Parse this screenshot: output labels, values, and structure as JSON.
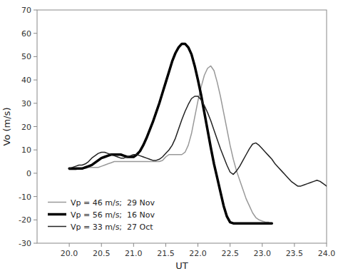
{
  "chart_data": {
    "type": "line",
    "xlabel": "UT",
    "ylabel": "Vo (m/s)",
    "xlim": [
      19.5,
      24.0
    ],
    "ylim": [
      -30,
      70
    ],
    "xticks": [
      {
        "value": 20.0,
        "label": "20.0"
      },
      20.5,
      {
        "value": 21.0,
        "label": "21.0"
      },
      21.5,
      {
        "value": 22.0,
        "label": "22.0"
      },
      22.5,
      {
        "value": 23.0,
        "label": "23.0"
      },
      23.5,
      {
        "value": 24.0,
        "label": "24.0"
      }
    ],
    "yticks": [
      -30,
      -20,
      -10,
      0,
      10,
      20,
      30,
      40,
      50,
      60,
      70
    ],
    "legend": "lower left",
    "series": [
      {
        "name": "Vp = 46 m/s;  29 Nov",
        "color": "#999999",
        "x": [
          20.0,
          20.05,
          20.1,
          20.15,
          20.2,
          20.25,
          20.3,
          20.35,
          20.4,
          20.45,
          20.5,
          20.55,
          20.6,
          20.65,
          20.7,
          20.75,
          20.8,
          20.85,
          20.9,
          20.95,
          21.0,
          21.1,
          21.2,
          21.3,
          21.4,
          21.45,
          21.5,
          21.55,
          21.6,
          21.65,
          21.7,
          21.75,
          21.8,
          21.85,
          21.9,
          21.95,
          22.0,
          22.05,
          22.1,
          22.15,
          22.2,
          22.25,
          22.3,
          22.35,
          22.4,
          22.45,
          22.5,
          22.55,
          22.6,
          22.65,
          22.7,
          22.75,
          22.8,
          22.85,
          22.9,
          22.95,
          23.0,
          23.05,
          23.1
        ],
        "values": [
          1.5,
          1.5,
          1.5,
          2.0,
          2.0,
          2.0,
          2.5,
          2.5,
          2.5,
          2.5,
          3.0,
          3.5,
          4.0,
          4.5,
          5.0,
          5.0,
          5.0,
          5.0,
          5.0,
          5.0,
          5.0,
          5.0,
          5.0,
          5.0,
          5.0,
          5.5,
          7.0,
          8.0,
          8.0,
          8.0,
          8.0,
          8.0,
          9.0,
          12.0,
          17.0,
          24.0,
          31.0,
          37.0,
          42.0,
          45.0,
          46.0,
          44.0,
          39.0,
          33.0,
          26.0,
          19.0,
          12.0,
          6.0,
          1.0,
          -3.0,
          -7.0,
          -11.0,
          -14.0,
          -17.0,
          -19.0,
          -20.0,
          -20.5,
          -21.0,
          -21.0
        ]
      },
      {
        "name": "Vp = 56 m/s;  16 Nov",
        "color": "#000000",
        "x": [
          20.0,
          20.05,
          20.1,
          20.15,
          20.2,
          20.25,
          20.3,
          20.35,
          20.4,
          20.45,
          20.5,
          20.55,
          20.6,
          20.65,
          20.7,
          20.75,
          20.8,
          20.85,
          20.9,
          20.95,
          21.0,
          21.05,
          21.1,
          21.15,
          21.2,
          21.25,
          21.3,
          21.35,
          21.4,
          21.45,
          21.5,
          21.55,
          21.6,
          21.65,
          21.7,
          21.75,
          21.8,
          21.85,
          21.9,
          21.95,
          22.0,
          22.05,
          22.1,
          22.15,
          22.2,
          22.25,
          22.3,
          22.35,
          22.4,
          22.45,
          22.5,
          22.55,
          22.6,
          22.65,
          22.7,
          22.75,
          22.8,
          22.85,
          22.9,
          22.95,
          23.0,
          23.05,
          23.1,
          23.15
        ],
        "values": [
          2.0,
          2.0,
          2.0,
          2.0,
          2.0,
          2.5,
          3.0,
          3.5,
          4.5,
          5.5,
          6.5,
          7.0,
          7.5,
          8.0,
          8.0,
          8.0,
          8.0,
          7.5,
          7.0,
          7.0,
          7.0,
          8.0,
          9.5,
          12.0,
          15.0,
          18.5,
          22.0,
          26.0,
          30.0,
          34.5,
          39.0,
          43.5,
          48.0,
          51.5,
          54.0,
          55.5,
          55.5,
          54.0,
          51.0,
          46.0,
          40.0,
          33.5,
          26.0,
          18.5,
          11.0,
          4.0,
          -2.0,
          -8.0,
          -14.0,
          -18.5,
          -21.0,
          -21.5,
          -21.5,
          -21.5,
          -21.5,
          -21.5,
          -21.5,
          -21.5,
          -21.5,
          -21.5,
          -21.5,
          -21.5,
          -21.5,
          -21.5
        ]
      },
      {
        "name": "Vp = 33 m/s;  27 Oct",
        "color": "#222222",
        "x": [
          20.0,
          20.05,
          20.1,
          20.15,
          20.2,
          20.25,
          20.3,
          20.35,
          20.4,
          20.45,
          20.5,
          20.55,
          20.6,
          20.65,
          20.7,
          20.75,
          20.8,
          20.85,
          20.9,
          20.95,
          21.0,
          21.05,
          21.1,
          21.15,
          21.2,
          21.25,
          21.3,
          21.35,
          21.4,
          21.45,
          21.5,
          21.55,
          21.6,
          21.65,
          21.7,
          21.75,
          21.8,
          21.85,
          21.9,
          21.95,
          22.0,
          22.05,
          22.1,
          22.15,
          22.2,
          22.25,
          22.3,
          22.35,
          22.4,
          22.45,
          22.5,
          22.55,
          22.6,
          22.65,
          22.7,
          22.75,
          22.8,
          22.85,
          22.9,
          22.95,
          23.0,
          23.05,
          23.1,
          23.15,
          23.2,
          23.25,
          23.3,
          23.35,
          23.4,
          23.45,
          23.5,
          23.55,
          23.6,
          23.65,
          23.7,
          23.75,
          23.8,
          23.85,
          23.9,
          23.95,
          24.0
        ],
        "values": [
          2.0,
          2.5,
          3.0,
          3.5,
          3.5,
          4.0,
          5.0,
          6.5,
          7.5,
          8.5,
          9.0,
          9.0,
          8.5,
          8.0,
          7.5,
          7.0,
          6.5,
          6.5,
          7.0,
          7.5,
          8.0,
          8.0,
          7.5,
          7.0,
          6.5,
          6.0,
          5.5,
          5.5,
          6.0,
          7.0,
          8.5,
          10.0,
          12.0,
          15.0,
          19.0,
          23.0,
          26.5,
          29.5,
          32.0,
          33.0,
          33.0,
          31.5,
          29.0,
          26.0,
          22.5,
          18.5,
          14.5,
          10.5,
          7.0,
          3.5,
          0.5,
          -0.5,
          1.0,
          3.0,
          5.5,
          8.0,
          10.5,
          12.5,
          13.0,
          12.0,
          10.5,
          9.0,
          7.5,
          6.0,
          4.0,
          2.5,
          1.0,
          -0.5,
          -2.0,
          -3.5,
          -4.5,
          -5.5,
          -5.5,
          -5.0,
          -4.5,
          -4.0,
          -3.5,
          -3.0,
          -3.5,
          -4.5,
          -5.5
        ]
      }
    ]
  }
}
